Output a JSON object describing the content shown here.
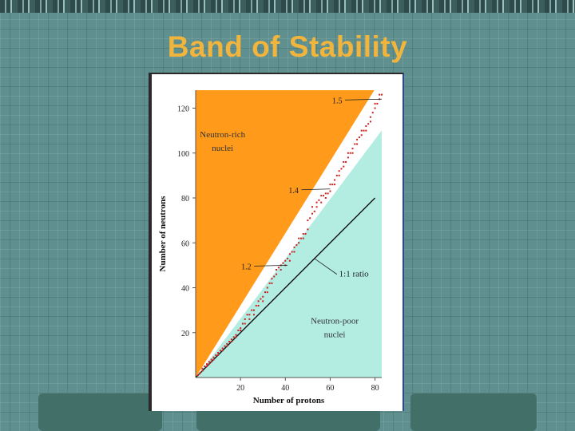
{
  "slide": {
    "title": "Band of Stability"
  },
  "colors": {
    "neutron_rich_region": "#ff9a1a",
    "neutron_poor_region": "#b3ede2",
    "stability_band": "#ffffff",
    "stable_nuclei_dots": "#cc2020",
    "ratio_line": "#111111",
    "title": "#f1b43c"
  },
  "chart_data": {
    "type": "scatter",
    "title": "",
    "xlabel": "Number of protons",
    "ylabel": "Number of neutrons",
    "xlim": [
      0,
      83
    ],
    "ylim": [
      0,
      128
    ],
    "x_ticks": [
      20,
      40,
      60,
      80
    ],
    "y_ticks": [
      20,
      40,
      60,
      80,
      100,
      120
    ],
    "grid": false,
    "regions": [
      {
        "label_line1": "Neutron-rich",
        "label_line2": "nuclei"
      },
      {
        "label_line1": "Neutron-poor",
        "label_line2": "nuclei"
      }
    ],
    "reference_line": {
      "label": "1:1 ratio",
      "slope": 1
    },
    "ratio_annotations": [
      {
        "label": "1.5",
        "x": 83,
        "y": 124
      },
      {
        "label": "1.4",
        "x": 60,
        "y": 84
      },
      {
        "label": "1.2",
        "x": 41,
        "y": 50
      }
    ],
    "series": [
      {
        "x": [
          1,
          2,
          3,
          3,
          4,
          5,
          5,
          6,
          6,
          7,
          7,
          8,
          8,
          9,
          10,
          10,
          11,
          12,
          12,
          13,
          14,
          14,
          15,
          16,
          16,
          17,
          18,
          18,
          19,
          20,
          20,
          21,
          22,
          22,
          23,
          24,
          24,
          25,
          26,
          26,
          27,
          28,
          28,
          29,
          30,
          30,
          31,
          32,
          32,
          33,
          34,
          34,
          35,
          36,
          36,
          37,
          38,
          38,
          39,
          40,
          40,
          41,
          42,
          42,
          43,
          44,
          44,
          45,
          46,
          46,
          47,
          48,
          48,
          49,
          50,
          50,
          51,
          52,
          52,
          53,
          54,
          54,
          55,
          56,
          56,
          57,
          58,
          58,
          59,
          60,
          60,
          61,
          62,
          62,
          63,
          64,
          64,
          65,
          66,
          66,
          67,
          68,
          68,
          69,
          70,
          70,
          71,
          72,
          72,
          73,
          74,
          74,
          75,
          76,
          76,
          77,
          78,
          78,
          79,
          80,
          80,
          81,
          82,
          82,
          83
        ],
        "y": [
          1,
          2,
          3,
          4,
          5,
          6,
          5,
          7,
          6,
          8,
          7,
          9,
          8,
          10,
          11,
          10,
          12,
          13,
          12,
          14,
          15,
          14,
          16,
          17,
          16,
          18,
          19,
          18,
          21,
          22,
          21,
          24,
          26,
          24,
          28,
          28,
          26,
          30,
          30,
          28,
          32,
          34,
          32,
          35,
          36,
          34,
          38,
          40,
          38,
          42,
          44,
          42,
          45,
          48,
          46,
          49,
          50,
          48,
          51,
          52,
          50,
          53,
          55,
          52,
          56,
          58,
          56,
          59,
          62,
          60,
          62,
          64,
          62,
          64,
          70,
          66,
          71,
          76,
          73,
          74,
          78,
          76,
          79,
          81,
          78,
          81,
          82,
          80,
          82,
          86,
          83,
          86,
          88,
          86,
          90,
          92,
          90,
          93,
          96,
          94,
          96,
          100,
          98,
          100,
          102,
          100,
          104,
          106,
          104,
          107,
          110,
          108,
          110,
          112,
          110,
          113,
          116,
          114,
          118,
          122,
          120,
          122,
          126,
          124,
          126
        ]
      }
    ]
  }
}
